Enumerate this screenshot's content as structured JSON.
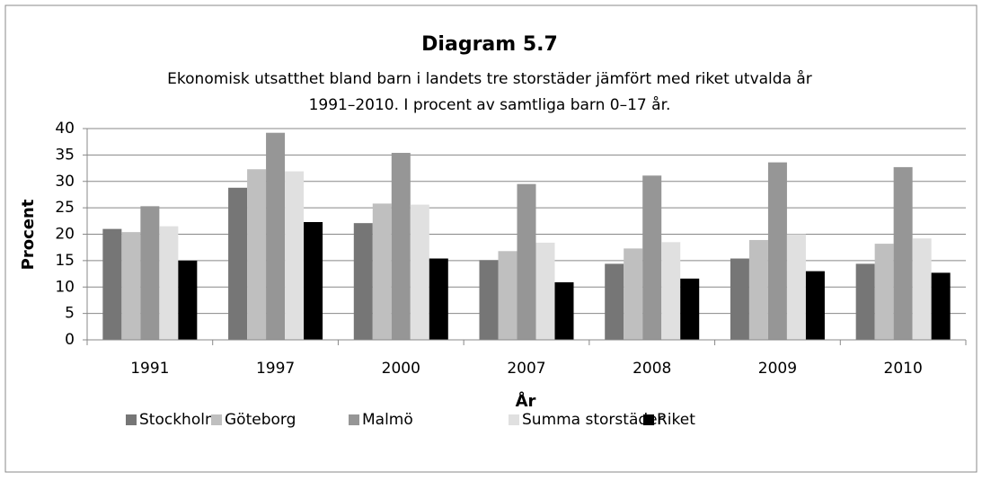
{
  "chart_data": {
    "type": "bar",
    "title": "Diagram 5.7",
    "subtitle": [
      "Ekonomisk utsatthet bland barn i landets tre storstäder jämfört med riket utvalda år",
      "1991–2010. I procent av samtliga barn 0–17 år."
    ],
    "x_label": "År",
    "y_label": "Procent",
    "categories": [
      "1991",
      "1997",
      "2000",
      "2007",
      "2008",
      "2009",
      "2010"
    ],
    "series": [
      {
        "name": "Stockholm",
        "color": "#767676",
        "values": [
          21,
          28.8,
          22.1,
          15.1,
          14.4,
          15.4,
          14.4
        ]
      },
      {
        "name": "Göteborg",
        "color": "#bfbfbf",
        "values": [
          20.4,
          32.3,
          25.8,
          16.8,
          17.3,
          18.9,
          18.2
        ]
      },
      {
        "name": "Malmö",
        "color": "#969696",
        "values": [
          25.3,
          39.2,
          35.4,
          29.5,
          31.1,
          33.6,
          32.7
        ]
      },
      {
        "name": "Summa storstäder",
        "color": "#e0e0e0",
        "values": [
          21.5,
          31.9,
          25.6,
          18.4,
          18.5,
          20,
          19.2
        ]
      },
      {
        "name": "Riket",
        "color": "#000000",
        "values": [
          15,
          22.3,
          15.4,
          10.9,
          11.6,
          13,
          12.7
        ]
      }
    ],
    "ylim": [
      0,
      40
    ],
    "yticks": [
      0,
      5,
      10,
      15,
      20,
      25,
      30,
      35,
      40
    ],
    "grid": true,
    "legend": "bottom"
  }
}
